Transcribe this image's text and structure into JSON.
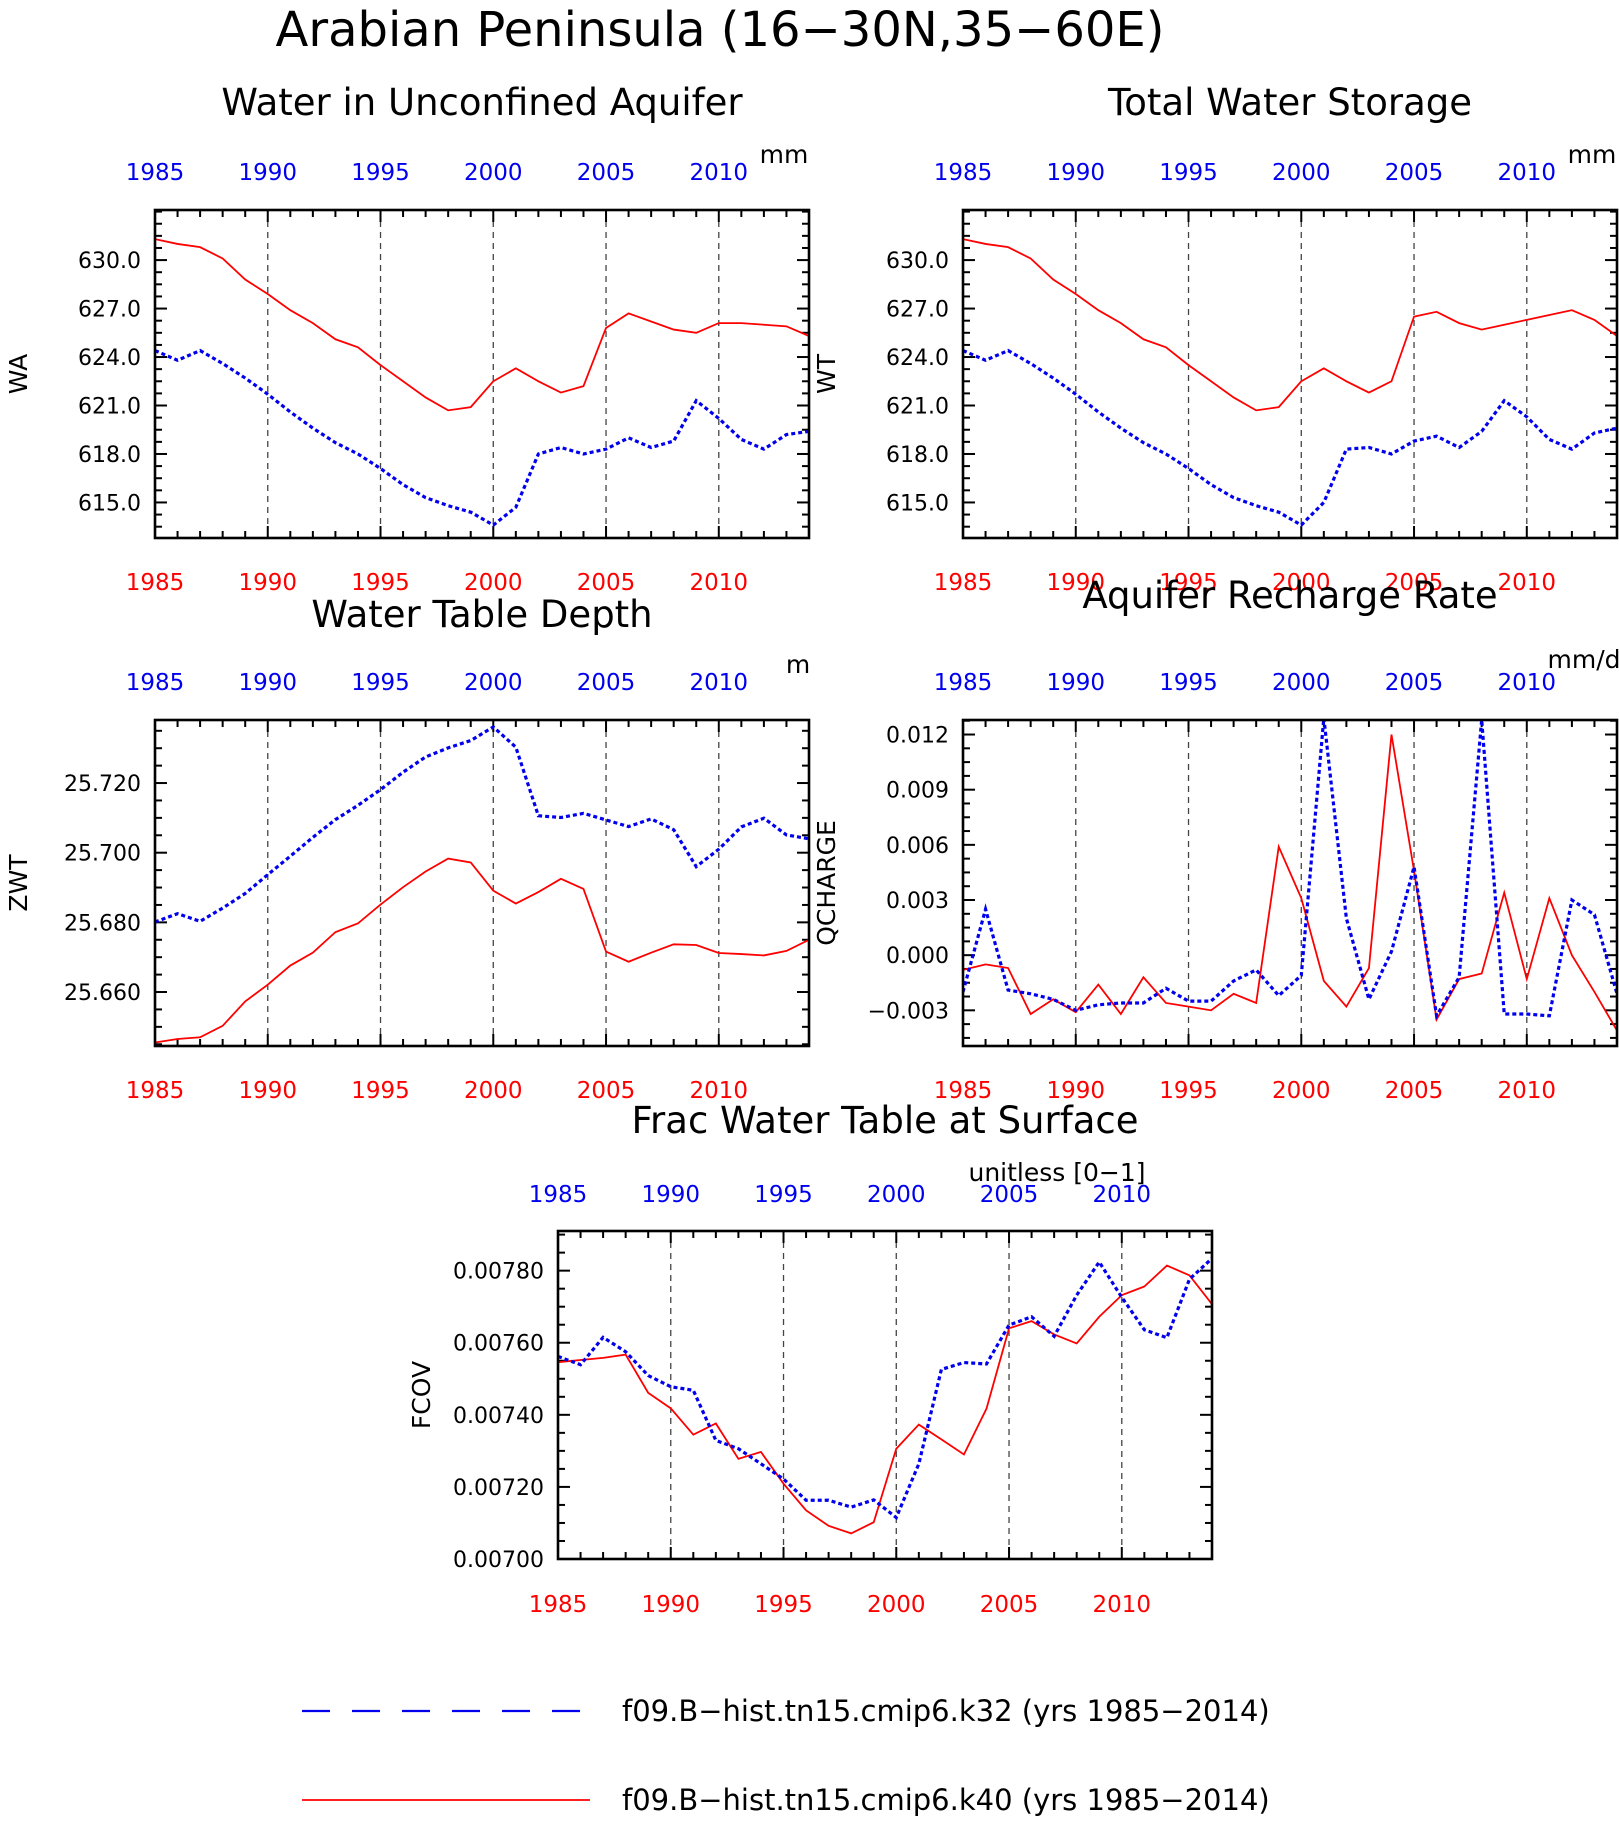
{
  "figure_title": "Arabian Peninsula (16−30N,35−60E)",
  "colors": {
    "k32": "#0000ee",
    "k40": "#ff0000",
    "top_ticks": "#0000ee",
    "bottom_ticks": "#ff0000",
    "axis": "#000000",
    "gridline": "#444444"
  },
  "legend": {
    "entries": [
      {
        "series": "k32",
        "label": "f09.B−hist.tn15.cmip6.k32 (yrs 1985−2014)",
        "style": "dashed",
        "color": "#0000ee"
      },
      {
        "series": "k40",
        "label": "f09.B−hist.tn15.cmip6.k40 (yrs 1985−2014)",
        "style": "solid",
        "color": "#ff0000"
      }
    ]
  },
  "chart_data": [
    {
      "id": "wa",
      "type": "line",
      "title": "Water in Unconfined Aquifer",
      "ylabel": "WA",
      "units": "mm",
      "x_range": [
        1985,
        2014
      ],
      "x_tick_labels": [
        "1985",
        "1990",
        "1995",
        "2000",
        "2005",
        "2010"
      ],
      "ylim": [
        612.8,
        633.1
      ],
      "y_ticks": [
        615.0,
        618.0,
        621.0,
        624.0,
        627.0,
        630.0
      ],
      "y_tick_labels": [
        "615.0",
        "618.0",
        "621.0",
        "624.0",
        "627.0",
        "630.0"
      ],
      "grid_x": [
        1990,
        1995,
        2000,
        2005,
        2010
      ],
      "x": [
        1985,
        1986,
        1987,
        1988,
        1989,
        1990,
        1991,
        1992,
        1993,
        1994,
        1995,
        1996,
        1997,
        1998,
        1999,
        2000,
        2001,
        2002,
        2003,
        2004,
        2005,
        2006,
        2007,
        2008,
        2009,
        2010,
        2011,
        2012,
        2013,
        2014
      ],
      "series": [
        {
          "key": "k40",
          "values": [
            631.3,
            631.0,
            630.8,
            630.1,
            628.8,
            627.9,
            626.9,
            626.1,
            625.1,
            624.6,
            623.5,
            622.5,
            621.5,
            620.7,
            620.9,
            622.5,
            623.3,
            622.5,
            621.8,
            622.2,
            625.8,
            626.7,
            626.2,
            625.7,
            625.5,
            626.1,
            626.1,
            626.0,
            625.9,
            625.3
          ]
        },
        {
          "key": "k32",
          "values": [
            624.4,
            623.8,
            624.4,
            623.6,
            622.7,
            621.7,
            620.6,
            619.6,
            618.7,
            618.0,
            617.1,
            616.1,
            615.3,
            614.8,
            614.4,
            613.6,
            614.7,
            618.0,
            618.4,
            618.0,
            618.3,
            619.0,
            618.4,
            618.8,
            621.3,
            620.2,
            618.9,
            618.3,
            619.2,
            619.4
          ]
        }
      ]
    },
    {
      "id": "wt",
      "type": "line",
      "title": "Total Water Storage",
      "ylabel": "WT",
      "units": "mm",
      "x_range": [
        1985,
        2014
      ],
      "x_tick_labels": [
        "1985",
        "1990",
        "1995",
        "2000",
        "2005",
        "2010"
      ],
      "ylim": [
        612.8,
        633.1
      ],
      "y_ticks": [
        615.0,
        618.0,
        621.0,
        624.0,
        627.0,
        630.0
      ],
      "y_tick_labels": [
        "615.0",
        "618.0",
        "621.0",
        "624.0",
        "627.0",
        "630.0"
      ],
      "grid_x": [
        1990,
        1995,
        2000,
        2005,
        2010
      ],
      "x": [
        1985,
        1986,
        1987,
        1988,
        1989,
        1990,
        1991,
        1992,
        1993,
        1994,
        1995,
        1996,
        1997,
        1998,
        1999,
        2000,
        2001,
        2002,
        2003,
        2004,
        2005,
        2006,
        2007,
        2008,
        2009,
        2010,
        2011,
        2012,
        2013,
        2014
      ],
      "series": [
        {
          "key": "k40",
          "values": [
            631.3,
            631.0,
            630.8,
            630.1,
            628.8,
            627.9,
            626.9,
            626.1,
            625.1,
            624.6,
            623.5,
            622.5,
            621.5,
            620.7,
            620.9,
            622.5,
            623.3,
            622.5,
            621.8,
            622.5,
            626.5,
            626.8,
            626.1,
            625.7,
            626.0,
            626.3,
            626.6,
            626.9,
            626.3,
            625.3
          ]
        },
        {
          "key": "k32",
          "values": [
            624.4,
            623.8,
            624.4,
            623.6,
            622.7,
            621.7,
            620.6,
            619.6,
            618.7,
            618.0,
            617.1,
            616.1,
            615.3,
            614.8,
            614.4,
            613.6,
            615.0,
            618.3,
            618.4,
            618.0,
            618.8,
            619.1,
            618.4,
            619.4,
            621.3,
            620.3,
            618.9,
            618.3,
            619.3,
            619.6
          ]
        }
      ]
    },
    {
      "id": "zwt",
      "type": "line",
      "title": "Water Table Depth",
      "ylabel": "ZWT",
      "units": "m",
      "x_range": [
        1985,
        2014
      ],
      "x_tick_labels": [
        "1985",
        "1990",
        "1995",
        "2000",
        "2005",
        "2010"
      ],
      "ylim": [
        25.6445,
        25.7381
      ],
      "y_ticks": [
        25.66,
        25.68,
        25.7,
        25.72
      ],
      "y_tick_labels": [
        "25.660",
        "25.680",
        "25.700",
        "25.720"
      ],
      "grid_x": [
        1990,
        1995,
        2000,
        2005,
        2010
      ],
      "x": [
        1985,
        1986,
        1987,
        1988,
        1989,
        1990,
        1991,
        1992,
        1993,
        1994,
        1995,
        1996,
        1997,
        1998,
        1999,
        2000,
        2001,
        2002,
        2003,
        2004,
        2005,
        2006,
        2007,
        2008,
        2009,
        2010,
        2011,
        2012,
        2013,
        2014
      ],
      "series": [
        {
          "key": "k40",
          "values": [
            25.6455,
            25.6465,
            25.647,
            25.6503,
            25.6573,
            25.6621,
            25.6676,
            25.6713,
            25.6772,
            25.6797,
            25.6851,
            25.6901,
            25.6946,
            25.6983,
            25.6972,
            25.6891,
            25.6854,
            25.6887,
            25.6925,
            25.6896,
            25.6716,
            25.6687,
            25.6713,
            25.6737,
            25.6735,
            25.6712,
            25.6709,
            25.6705,
            25.6718,
            25.675
          ]
        },
        {
          "key": "k32",
          "values": [
            25.6801,
            25.6825,
            25.6803,
            25.6841,
            25.6883,
            25.6937,
            25.699,
            25.7044,
            25.7095,
            25.7136,
            25.7181,
            25.7231,
            25.7275,
            25.7301,
            25.7322,
            25.7361,
            25.7303,
            25.7106,
            25.7101,
            25.7113,
            25.7094,
            25.7075,
            25.7097,
            25.7066,
            25.696,
            25.701,
            25.7074,
            25.7099,
            25.7051,
            25.704
          ]
        }
      ]
    },
    {
      "id": "qcharge",
      "type": "line",
      "title": "Aquifer Recharge Rate",
      "ylabel": "QCHARGE",
      "units": "mm/d",
      "x_range": [
        1985,
        2014
      ],
      "x_tick_labels": [
        "1985",
        "1990",
        "1995",
        "2000",
        "2005",
        "2010"
      ],
      "ylim": [
        -0.00494,
        0.01279
      ],
      "y_ticks": [
        -0.003,
        0.0,
        0.003,
        0.006,
        0.009,
        0.012
      ],
      "y_tick_labels": [
        "−0.003",
        "0.000",
        "0.003",
        "0.006",
        "0.009",
        "0.012"
      ],
      "grid_x": [
        1990,
        1995,
        2000,
        2005,
        2010
      ],
      "x": [
        1985,
        1986,
        1987,
        1988,
        1989,
        1990,
        1991,
        1992,
        1993,
        1994,
        1995,
        1996,
        1997,
        1998,
        1999,
        2000,
        2001,
        2002,
        2003,
        2004,
        2005,
        2006,
        2007,
        2008,
        2009,
        2010,
        2011,
        2012,
        2013,
        2014
      ],
      "series": [
        {
          "key": "k40",
          "values": [
            -0.0008,
            -0.0005,
            -0.0007,
            -0.0032,
            -0.0024,
            -0.0031,
            -0.0016,
            -0.0032,
            -0.0012,
            -0.0026,
            -0.0028,
            -0.003,
            -0.0021,
            -0.0026,
            0.0059,
            0.0031,
            -0.0014,
            -0.0028,
            -0.0007,
            0.012,
            0.0046,
            -0.0035,
            -0.0013,
            -0.001,
            0.0034,
            -0.0013,
            0.0031,
            0.0,
            -0.002,
            -0.0041
          ]
        },
        {
          "key": "k32",
          "values": [
            -0.002,
            0.0025,
            -0.0019,
            -0.0021,
            -0.0024,
            -0.003,
            -0.0027,
            -0.0026,
            -0.0026,
            -0.0018,
            -0.0025,
            -0.0025,
            -0.0014,
            -0.0008,
            -0.0022,
            -0.0011,
            0.0129,
            0.002,
            -0.0024,
            0.0002,
            0.0048,
            -0.0033,
            -0.0012,
            0.0128,
            -0.0032,
            -0.0032,
            -0.0033,
            0.003,
            0.0022,
            -0.0021
          ]
        }
      ]
    },
    {
      "id": "fcov",
      "type": "line",
      "title": "Frac Water Table at Surface",
      "ylabel": "FCOV",
      "units": "unitless [0−1]",
      "x_range": [
        1985,
        2014
      ],
      "x_tick_labels": [
        "1985",
        "1990",
        "1995",
        "2000",
        "2005",
        "2010"
      ],
      "ylim": [
        0.007,
        0.00791
      ],
      "y_ticks": [
        0.007,
        0.0072,
        0.0074,
        0.0076,
        0.0078
      ],
      "y_tick_labels": [
        "0.00700",
        "0.00720",
        "0.00740",
        "0.00760",
        "0.00780"
      ],
      "grid_x": [
        1990,
        1995,
        2000,
        2005,
        2010
      ],
      "x": [
        1985,
        1986,
        1987,
        1988,
        1989,
        1990,
        1991,
        1992,
        1993,
        1994,
        1995,
        1996,
        1997,
        1998,
        1999,
        2000,
        2001,
        2002,
        2003,
        2004,
        2005,
        2006,
        2007,
        2008,
        2009,
        2010,
        2011,
        2012,
        2013,
        2014
      ],
      "series": [
        {
          "key": "k40",
          "values": [
            0.007546,
            0.007552,
            0.007558,
            0.007567,
            0.007461,
            0.007418,
            0.007345,
            0.007376,
            0.007278,
            0.007297,
            0.007209,
            0.007135,
            0.007092,
            0.007071,
            0.007102,
            0.007306,
            0.007373,
            0.007332,
            0.00729,
            0.007417,
            0.00764,
            0.00766,
            0.007623,
            0.007598,
            0.007672,
            0.007732,
            0.007756,
            0.007814,
            0.007787,
            0.007707
          ]
        },
        {
          "key": "k32",
          "values": [
            0.007562,
            0.007539,
            0.007615,
            0.007575,
            0.007509,
            0.007478,
            0.007468,
            0.007329,
            0.007306,
            0.007264,
            0.007222,
            0.007163,
            0.007163,
            0.007144,
            0.007164,
            0.007115,
            0.007264,
            0.007526,
            0.007545,
            0.007541,
            0.007649,
            0.007672,
            0.007618,
            0.007732,
            0.007824,
            0.007726,
            0.007636,
            0.007614,
            0.007776,
            0.007834
          ]
        }
      ]
    }
  ]
}
